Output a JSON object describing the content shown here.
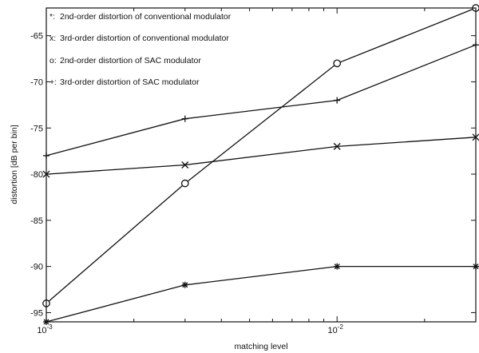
{
  "chart_data": {
    "type": "line",
    "xlabel": "matching level",
    "ylabel": "distortion [dB per bin]",
    "x_scale": "log",
    "xlim": [
      0.001,
      0.03
    ],
    "ylim": [
      -96,
      -62
    ],
    "grid": false,
    "legend_position": "top-left",
    "x_ticks": [
      {
        "value": 0.001,
        "base": "10",
        "exp": "-3"
      },
      {
        "value": 0.01,
        "base": "10",
        "exp": "-2"
      }
    ],
    "y_ticks": [
      -65,
      -70,
      -75,
      -80,
      -85,
      -90,
      -95
    ],
    "series": [
      {
        "name": "2nd-order distortion of conventional modulator",
        "legend_marker": "*:",
        "marker": "asterisk",
        "x": [
          0.001,
          0.003,
          0.01,
          0.03
        ],
        "y": [
          -96,
          -92,
          -90,
          -90
        ]
      },
      {
        "name": "3rd-order distortion of conventional modulator",
        "legend_marker": "x:",
        "marker": "x",
        "x": [
          0.001,
          0.003,
          0.01,
          0.03
        ],
        "y": [
          -80,
          -79,
          -77,
          -76
        ]
      },
      {
        "name": "2nd-order distortion of SAC modulator",
        "legend_marker": "o:",
        "marker": "circle",
        "x": [
          0.001,
          0.003,
          0.01,
          0.03
        ],
        "y": [
          -94,
          -81,
          -68,
          -62
        ]
      },
      {
        "name": "3rd-order distortion of SAC modulator",
        "legend_marker": "+:",
        "marker": "plus",
        "x": [
          0.001,
          0.003,
          0.01,
          0.03
        ],
        "y": [
          -78,
          -74,
          -72,
          -66
        ]
      }
    ]
  }
}
